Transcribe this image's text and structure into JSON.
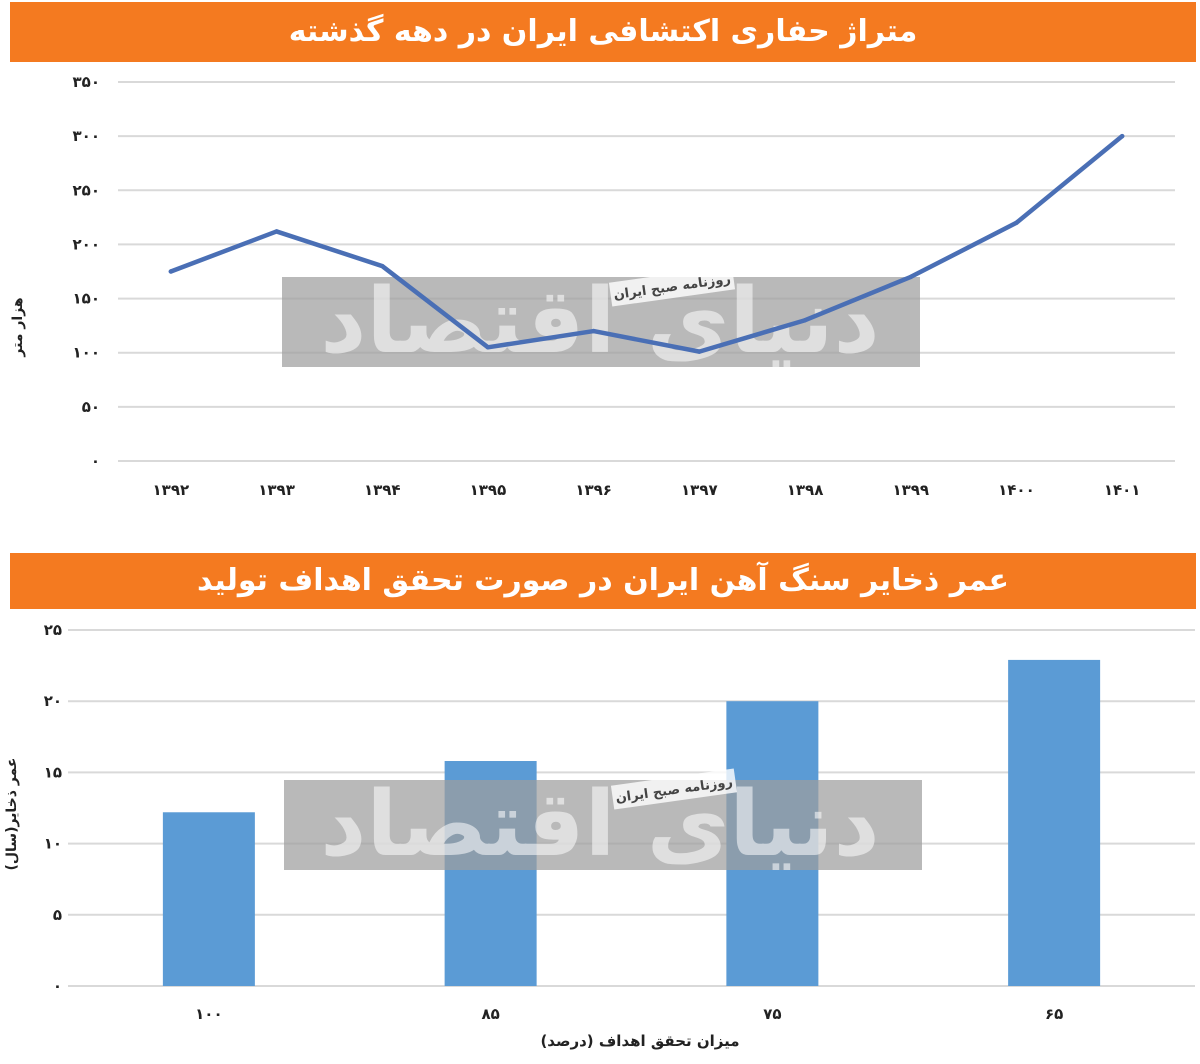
{
  "charts": {
    "top": {
      "title": "متراژ حفاری اکتشافی ایران در دهه گذشته"
    },
    "bottom": {
      "title": "عمر ذخایر سنگ آهن ایران در صورت تحقق اهداف تولید"
    }
  },
  "watermark": {
    "brand": "دنیای اقتصاد",
    "label": "روزنامه صبح ایران"
  },
  "colors": {
    "banner": "#f47a20",
    "line": "#4a6fb5",
    "bar": "#5b9bd5",
    "grid": "#d9d9d9"
  },
  "chart_data": [
    {
      "type": "line",
      "title": "متراژ حفاری اکتشافی ایران در دهه گذشته",
      "xlabel": "",
      "ylabel": "هزار متر",
      "categories": [
        "۱۳۹۲",
        "۱۳۹۳",
        "۱۳۹۴",
        "۱۳۹۵",
        "۱۳۹۶",
        "۱۳۹۷",
        "۱۳۹۸",
        "۱۳۹۹",
        "۱۴۰۰",
        "۱۴۰۱"
      ],
      "values": [
        175,
        212,
        180,
        105,
        120,
        101,
        130,
        170,
        220,
        300
      ],
      "ylim": [
        0,
        350
      ],
      "yticks": [
        0,
        50,
        100,
        150,
        200,
        250,
        300,
        350
      ],
      "ytick_labels": [
        "۰",
        "۵۰",
        "۱۰۰",
        "۱۵۰",
        "۲۰۰",
        "۲۵۰",
        "۳۰۰",
        "۳۵۰"
      ],
      "grid": true
    },
    {
      "type": "bar",
      "title": "عمر ذخایر سنگ آهن ایران در صورت تحقق اهداف تولید",
      "xlabel": "میزان تحقق اهداف (درصد)",
      "ylabel": "عمر ذخایر(سال)",
      "categories": [
        "۱۰۰",
        "۸۵",
        "۷۵",
        "۶۵"
      ],
      "values": [
        12.2,
        15.8,
        20,
        22.9
      ],
      "ylim": [
        0,
        25
      ],
      "yticks": [
        0,
        5,
        10,
        15,
        20,
        25
      ],
      "ytick_labels": [
        "۰",
        "۵",
        "۱۰",
        "۱۵",
        "۲۰",
        "۲۵"
      ],
      "grid": true
    }
  ]
}
